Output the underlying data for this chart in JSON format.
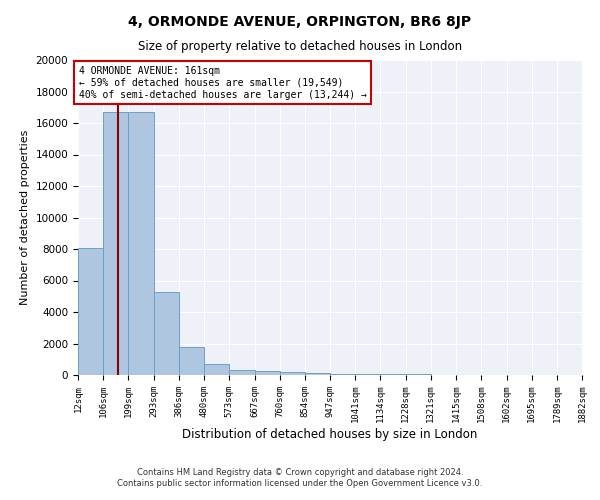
{
  "title": "4, ORMONDE AVENUE, ORPINGTON, BR6 8JP",
  "subtitle": "Size of property relative to detached houses in London",
  "xlabel": "Distribution of detached houses by size in London",
  "ylabel": "Number of detached properties",
  "bar_color": "#aec6df",
  "bar_edge_color": "#6ca0c8",
  "background_color": "#eef2f8",
  "grid_color": "#ffffff",
  "bin_edges": [
    12,
    106,
    199,
    293,
    386,
    480,
    573,
    667,
    760,
    854,
    947,
    1041,
    1134,
    1228,
    1321,
    1415,
    1508,
    1602,
    1695,
    1789,
    1882
  ],
  "bin_labels": [
    "12sqm",
    "106sqm",
    "199sqm",
    "293sqm",
    "386sqm",
    "480sqm",
    "573sqm",
    "667sqm",
    "760sqm",
    "854sqm",
    "947sqm",
    "1041sqm",
    "1134sqm",
    "1228sqm",
    "1321sqm",
    "1415sqm",
    "1508sqm",
    "1602sqm",
    "1695sqm",
    "1789sqm",
    "1882sqm"
  ],
  "bar_heights": [
    8050,
    16700,
    16700,
    5300,
    1750,
    700,
    330,
    230,
    160,
    100,
    75,
    55,
    45,
    35,
    25,
    20,
    15,
    12,
    10,
    8
  ],
  "marker_value": 161,
  "marker_color": "#8b0000",
  "annotation_line1": "4 ORMONDE AVENUE: 161sqm",
  "annotation_line2": "← 59% of detached houses are smaller (19,549)",
  "annotation_line3": "40% of semi-detached houses are larger (13,244) →",
  "annotation_box_color": "#ffffff",
  "annotation_box_edge_color": "#cc0000",
  "ylim": [
    0,
    20000
  ],
  "yticks": [
    0,
    2000,
    4000,
    6000,
    8000,
    10000,
    12000,
    14000,
    16000,
    18000,
    20000
  ],
  "footer_line1": "Contains HM Land Registry data © Crown copyright and database right 2024.",
  "footer_line2": "Contains public sector information licensed under the Open Government Licence v3.0."
}
